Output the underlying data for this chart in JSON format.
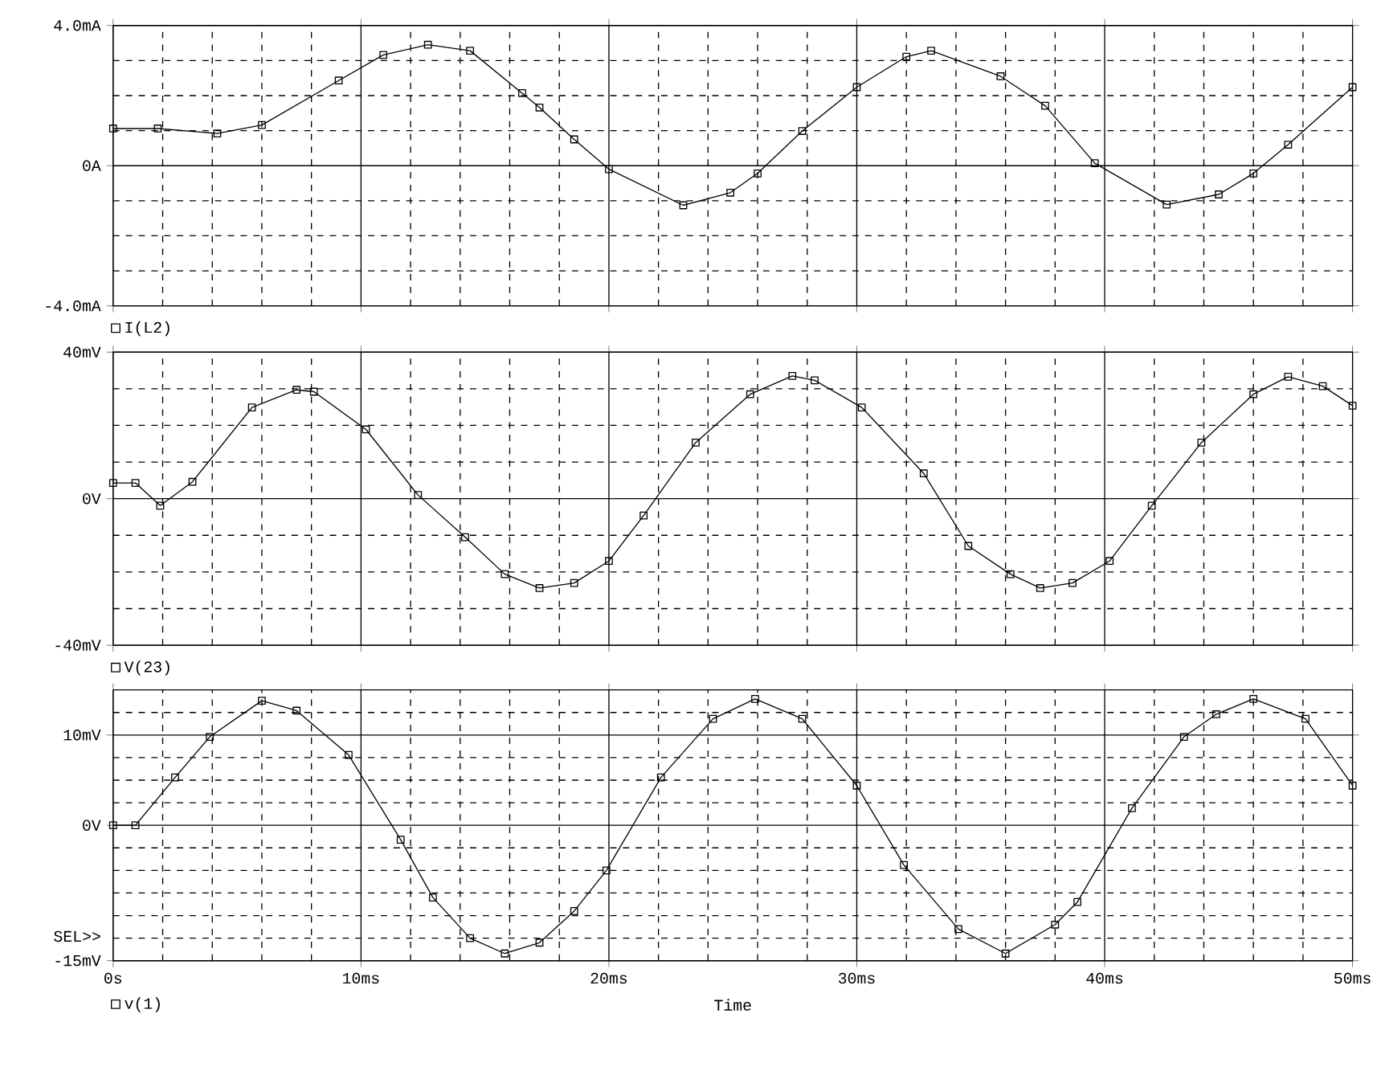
{
  "chart_data": [
    {
      "type": "line",
      "xlim": [
        0,
        50
      ],
      "ylim": [
        -4,
        4
      ],
      "tick_labels": "y",
      "grid": true,
      "marker": "square",
      "legend": "bottom left",
      "yticks": [
        {
          "value": 4,
          "label": "4.0mA"
        },
        {
          "value": 3,
          "label": null
        },
        {
          "value": 2,
          "label": null
        },
        {
          "value": 1,
          "label": null
        },
        {
          "value": 0,
          "label": "0A"
        },
        {
          "value": -1,
          "label": null
        },
        {
          "value": -2,
          "label": null
        },
        {
          "value": -3,
          "label": null
        },
        {
          "value": -4,
          "label": "-4.0mA"
        }
      ],
      "x": [
        0,
        1.8,
        4.2,
        6.0,
        9.1,
        10.9,
        12.7,
        14.4,
        16.5,
        17.2,
        18.6,
        20.0,
        23.0,
        24.9,
        26.0,
        27.8,
        30.0,
        32.0,
        33.0,
        35.8,
        37.6,
        39.6,
        42.5,
        44.6,
        46.0,
        47.4,
        50
      ],
      "series": [
        {
          "name": "I(L2)",
          "color": "#000000",
          "values": [
            1.06,
            1.06,
            0.92,
            1.16,
            2.43,
            3.16,
            3.45,
            3.28,
            2.07,
            1.66,
            0.75,
            -0.1,
            -1.13,
            -0.77,
            -0.22,
            0.99,
            2.24,
            3.11,
            3.28,
            2.55,
            1.71,
            0.07,
            -1.11,
            -0.82,
            -0.22,
            0.6,
            2.24
          ]
        }
      ]
    },
    {
      "type": "line",
      "xlim": [
        0,
        50
      ],
      "ylim": [
        -40,
        40
      ],
      "tick_labels": "y",
      "grid": true,
      "marker": "square",
      "legend": "bottom left",
      "yticks": [
        {
          "value": 40,
          "label": "40mV"
        },
        {
          "value": 30,
          "label": null
        },
        {
          "value": 20,
          "label": null
        },
        {
          "value": 10,
          "label": null
        },
        {
          "value": 0,
          "label": "0V"
        },
        {
          "value": -10,
          "label": null
        },
        {
          "value": -20,
          "label": null
        },
        {
          "value": -30,
          "label": null
        },
        {
          "value": -40,
          "label": "-40mV"
        }
      ],
      "x": [
        0,
        0.9,
        1.9,
        3.2,
        5.6,
        7.4,
        8.1,
        10.2,
        12.3,
        14.2,
        15.8,
        17.2,
        18.6,
        20.0,
        21.4,
        23.5,
        25.7,
        27.4,
        28.3,
        30.2,
        32.7,
        34.5,
        36.2,
        37.4,
        38.7,
        40.2,
        41.9,
        43.9,
        46.0,
        47.4,
        48.8,
        50
      ],
      "series": [
        {
          "name": "V(23)",
          "color": "#000000",
          "values": [
            4.3,
            4.3,
            -1.9,
            4.6,
            24.9,
            29.7,
            29.2,
            18.9,
            1.0,
            -10.5,
            -20.6,
            -24.4,
            -23,
            -17,
            -4.6,
            15.3,
            28.5,
            33.5,
            32.3,
            24.9,
            6.9,
            -12.9,
            -20.6,
            -24.4,
            -23,
            -17,
            -1.9,
            15.3,
            28.5,
            33.3,
            30.7,
            25.4
          ]
        }
      ]
    },
    {
      "type": "line",
      "xlim": [
        0,
        50
      ],
      "ylim": [
        -15,
        15
      ],
      "xlabel": "Time",
      "grid": true,
      "marker": "square",
      "legend": "bottom left",
      "annotations": [
        "SEL>>"
      ],
      "xticks": [
        {
          "value": 0,
          "label": "0s"
        },
        {
          "value": 2,
          "label": null
        },
        {
          "value": 4,
          "label": null
        },
        {
          "value": 6,
          "label": null
        },
        {
          "value": 8,
          "label": null
        },
        {
          "value": 10,
          "label": "10ms"
        },
        {
          "value": 12,
          "label": null
        },
        {
          "value": 14,
          "label": null
        },
        {
          "value": 16,
          "label": null
        },
        {
          "value": 18,
          "label": null
        },
        {
          "value": 20,
          "label": "20ms"
        },
        {
          "value": 22,
          "label": null
        },
        {
          "value": 24,
          "label": null
        },
        {
          "value": 26,
          "label": null
        },
        {
          "value": 28,
          "label": null
        },
        {
          "value": 30,
          "label": "30ms"
        },
        {
          "value": 32,
          "label": null
        },
        {
          "value": 34,
          "label": null
        },
        {
          "value": 36,
          "label": null
        },
        {
          "value": 38,
          "label": null
        },
        {
          "value": 40,
          "label": "40ms"
        },
        {
          "value": 42,
          "label": null
        },
        {
          "value": 44,
          "label": null
        },
        {
          "value": 46,
          "label": null
        },
        {
          "value": 48,
          "label": null
        },
        {
          "value": 50,
          "label": "50ms"
        }
      ],
      "yticks": [
        {
          "value": 12.5,
          "label": null
        },
        {
          "value": 10,
          "label": "10mV"
        },
        {
          "value": 7.5,
          "label": null
        },
        {
          "value": 5,
          "label": null
        },
        {
          "value": 2.5,
          "label": null
        },
        {
          "value": 0,
          "label": "0V"
        },
        {
          "value": -2.5,
          "label": null
        },
        {
          "value": -5,
          "label": null
        },
        {
          "value": -7.5,
          "label": null
        },
        {
          "value": -10,
          "label": null
        },
        {
          "value": -12.5,
          "label": null
        },
        {
          "value": -15,
          "label": "-15mV"
        }
      ],
      "x": [
        0,
        0.9,
        2.5,
        3.9,
        6.0,
        7.4,
        9.5,
        11.6,
        12.9,
        14.4,
        15.8,
        17.2,
        18.6,
        19.9,
        22.1,
        24.2,
        25.9,
        27.8,
        30.0,
        31.9,
        34.1,
        36.0,
        38.0,
        38.9,
        41.1,
        43.2,
        44.5,
        46.0,
        48.1,
        50
      ],
      "series": [
        {
          "name": "v(1)",
          "color": "#000000",
          "values": [
            0,
            0,
            5.3,
            9.8,
            13.8,
            12.7,
            7.8,
            -1.6,
            -8.0,
            -12.5,
            -14.2,
            -13.0,
            -9.5,
            -5.0,
            5.3,
            11.8,
            14.0,
            11.8,
            4.4,
            -4.4,
            -11.5,
            -14.2,
            -11.0,
            -8.5,
            1.9,
            9.8,
            12.3,
            14.0,
            11.8,
            4.4
          ]
        }
      ]
    }
  ]
}
